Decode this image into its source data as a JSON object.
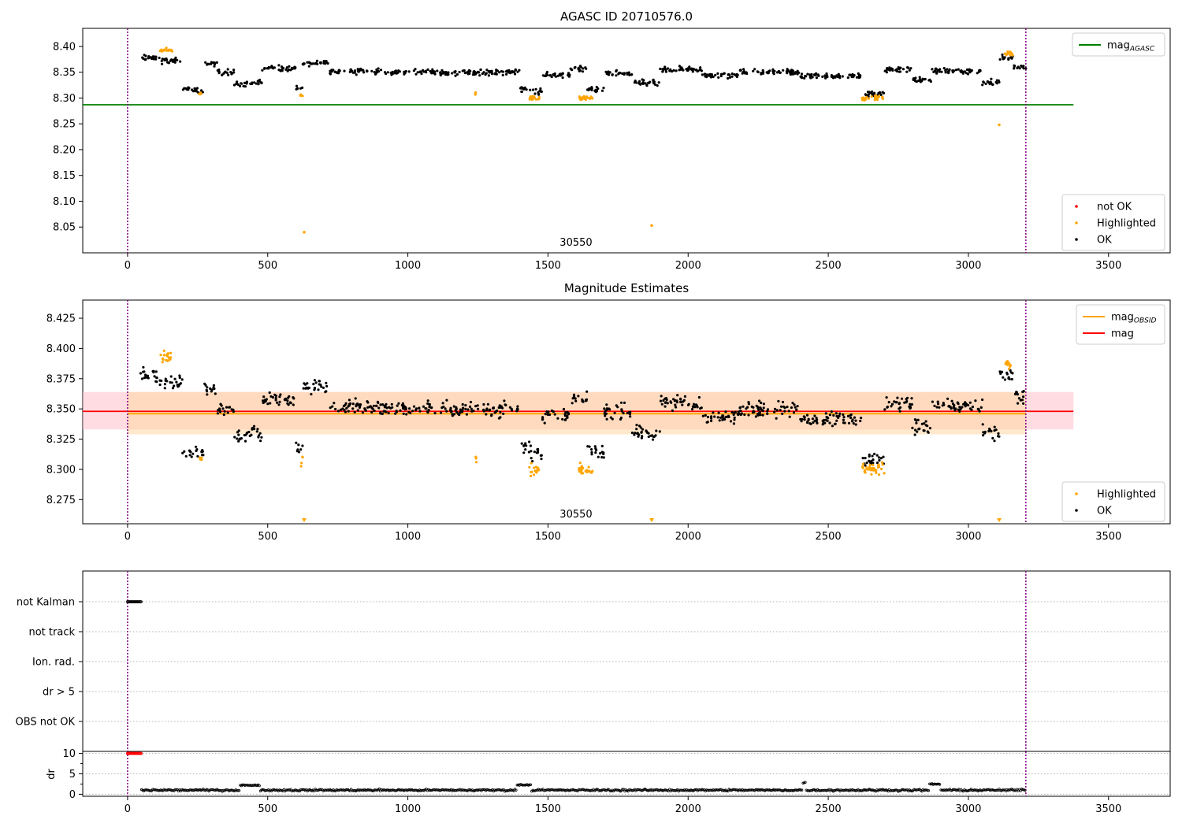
{
  "figure": {
    "title": "AGASC ID 20710576.0",
    "obsid_label": "30550"
  },
  "colors": {
    "ok": "#000000",
    "highlighted": "#ffa500",
    "not_ok": "#ff0000",
    "agasc_line": "#008000",
    "mag_line": "#ff0000",
    "obsid_line": "#ffa500",
    "mag_band": "#ffc0cb",
    "obsid_band": "#ffd8a8",
    "vline": "#800080",
    "grid": "#b0b0b0"
  },
  "chart_data": [
    {
      "type": "scatter",
      "title": "AGASC ID 20710576.0",
      "xlim": [
        -160,
        3720
      ],
      "ylim": [
        8.0,
        8.435
      ],
      "xticks": [
        0,
        500,
        1000,
        1500,
        2000,
        2500,
        3000,
        3500
      ],
      "yticks": [
        8.05,
        8.1,
        8.15,
        8.2,
        8.25,
        8.3,
        8.35,
        8.4
      ],
      "ytick_labels": [
        "8.05",
        "8.10",
        "8.15",
        "8.20",
        "8.25",
        "8.30",
        "8.35",
        "8.40"
      ],
      "hlines": [
        {
          "name": "mag",
          "sub": "AGASC",
          "y": 8.287,
          "x0": -160,
          "x1": 3375
        }
      ],
      "vlines": [
        0,
        3205
      ],
      "annotation": "30550",
      "legends": [
        {
          "position": "top-right",
          "entries": [
            {
              "kind": "line",
              "label": "mag",
              "sub": "AGASC",
              "color_key": "agasc_line"
            }
          ]
        },
        {
          "position": "bottom-right",
          "entries": [
            {
              "kind": "dot",
              "label": "not OK",
              "color_key": "not_ok"
            },
            {
              "kind": "dot",
              "label": "Highlighted",
              "color_key": "highlighted"
            },
            {
              "kind": "dot",
              "label": "OK",
              "color_key": "ok"
            }
          ]
        }
      ],
      "series": [
        {
          "name": "OK",
          "segments": [
            [
              45,
              115,
              8.378
            ],
            [
              115,
              195,
              8.372
            ],
            [
              195,
              270,
              8.315
            ],
            [
              275,
              320,
              8.367
            ],
            [
              320,
              380,
              8.35
            ],
            [
              380,
              430,
              8.328
            ],
            [
              430,
              480,
              8.33
            ],
            [
              480,
              600,
              8.357
            ],
            [
              600,
              625,
              8.318
            ],
            [
              625,
              720,
              8.368
            ],
            [
              720,
              900,
              8.352
            ],
            [
              900,
              1400,
              8.35
            ],
            [
              1400,
              1440,
              8.318
            ],
            [
              1440,
              1480,
              8.312
            ],
            [
              1480,
              1580,
              8.345
            ],
            [
              1580,
              1640,
              8.357
            ],
            [
              1640,
              1700,
              8.315
            ],
            [
              1700,
              1800,
              8.348
            ],
            [
              1800,
              1900,
              8.33
            ],
            [
              1900,
              2050,
              8.355
            ],
            [
              2050,
              2180,
              8.343
            ],
            [
              2180,
              2400,
              8.35
            ],
            [
              2400,
              2620,
              8.342
            ],
            [
              2620,
              2700,
              8.308
            ],
            [
              2700,
              2800,
              8.355
            ],
            [
              2800,
              2870,
              8.335
            ],
            [
              2870,
              3050,
              8.352
            ],
            [
              3050,
              3110,
              8.33
            ],
            [
              3110,
              3160,
              8.378
            ],
            [
              3160,
              3205,
              8.36
            ]
          ]
        },
        {
          "name": "Highlighted",
          "clusters": [
            [
              115,
              160,
              8.392
            ],
            [
              255,
              265,
              8.308
            ],
            [
              615,
              625,
              8.307
            ],
            [
              1240,
              1245,
              8.308
            ],
            [
              1430,
              1470,
              8.3
            ],
            [
              1610,
              1660,
              8.3
            ],
            [
              2620,
              2700,
              8.3
            ],
            [
              3130,
              3160,
              8.386
            ]
          ],
          "singles": [
            [
              630,
              8.04
            ],
            [
              1870,
              8.053
            ],
            [
              3110,
              8.248
            ]
          ]
        }
      ]
    },
    {
      "type": "scatter",
      "title": "Magnitude Estimates",
      "xlim": [
        -160,
        3720
      ],
      "ylim": [
        8.255,
        8.44
      ],
      "xticks": [
        0,
        500,
        1000,
        1500,
        2000,
        2500,
        3000,
        3500
      ],
      "yticks": [
        8.275,
        8.3,
        8.325,
        8.35,
        8.375,
        8.4,
        8.425
      ],
      "ytick_labels": [
        "8.275",
        "8.300",
        "8.325",
        "8.350",
        "8.375",
        "8.400",
        "8.425"
      ],
      "hlines": [
        {
          "name": "mag",
          "sub": "OBSID",
          "y": 8.346,
          "x0": 0,
          "x1": 3205
        },
        {
          "name": "mag",
          "y": 8.348,
          "x0": -160,
          "x1": 3375
        }
      ],
      "bands": [
        {
          "y0": 8.333,
          "y1": 8.364,
          "x0": -160,
          "x1": 3375
        },
        {
          "y0": 8.329,
          "y1": 8.364,
          "x0": 0,
          "x1": 3205
        }
      ],
      "vlines": [
        0,
        3205
      ],
      "annotation": "30550",
      "legends": [
        {
          "position": "top-right",
          "entries": [
            {
              "kind": "line",
              "label": "mag",
              "sub": "OBSID",
              "color_key": "obsid_line"
            },
            {
              "kind": "line",
              "label": "mag",
              "color_key": "mag_line"
            }
          ]
        },
        {
          "position": "bottom-right",
          "entries": [
            {
              "kind": "dot",
              "label": "Highlighted",
              "color_key": "highlighted"
            },
            {
              "kind": "dot",
              "label": "OK",
              "color_key": "ok"
            }
          ]
        }
      ],
      "offscale_markers_x": [
        630,
        1870,
        3110
      ]
    },
    {
      "type": "scatter",
      "xlim": [
        -160,
        3720
      ],
      "categories": [
        "not Kalman",
        "not track",
        "Ion. rad.",
        "dr > 5",
        "OBS not OK"
      ],
      "flag_not_kalman_range": [
        0,
        50
      ],
      "vlines": [
        0,
        3205
      ]
    },
    {
      "type": "scatter",
      "ylabel": "dr",
      "xlim": [
        -160,
        3720
      ],
      "ylim": [
        -0.5,
        10.5
      ],
      "xticks": [
        0,
        500,
        1000,
        1500,
        2000,
        2500,
        3000,
        3500
      ],
      "yticks": [
        0,
        5,
        10
      ],
      "dr_capped_range": [
        0,
        50
      ],
      "dr_capped_value": 10,
      "dr_typical": 1.0,
      "dr_bumps": [
        [
          400,
          470,
          2.2
        ],
        [
          1390,
          1440,
          2.3
        ],
        [
          2410,
          2420,
          2.8
        ],
        [
          2860,
          2900,
          2.5
        ]
      ],
      "vlines": [
        0,
        3205
      ]
    }
  ]
}
